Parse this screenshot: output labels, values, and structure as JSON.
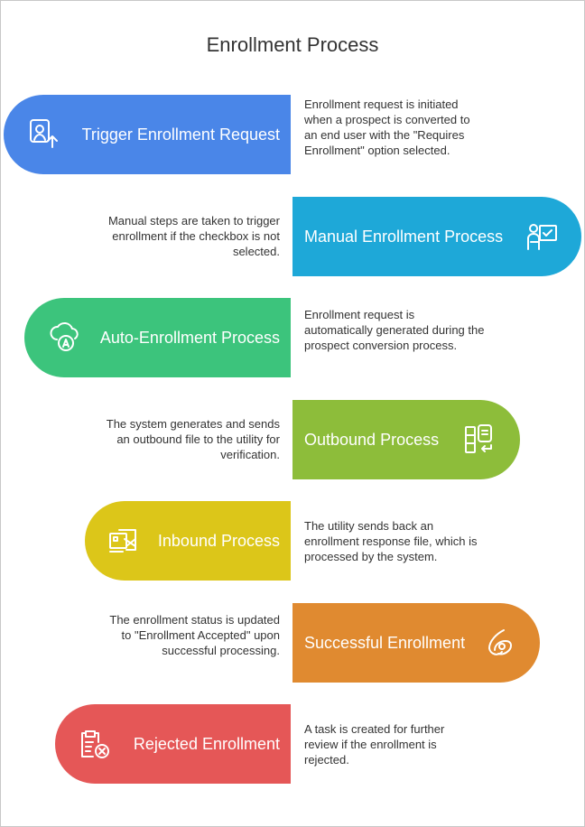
{
  "title": "Enrollment Process",
  "steps": [
    {
      "label": "Trigger Enrollment Request",
      "desc": "Enrollment request is initiated when a prospect is converted to an end user with the \"Requires Enrollment\" option selected.",
      "color": "#4a86e8",
      "icon": "user-upload-icon"
    },
    {
      "label": "Manual Enrollment Process",
      "desc": "Manual steps are taken to trigger enrollment if the checkbox is not selected.",
      "color": "#1ea8d8",
      "icon": "presenter-check-icon"
    },
    {
      "label": "Auto-Enrollment Process",
      "desc": "Enrollment request is automatically generated during the prospect conversion process.",
      "color": "#3cc47c",
      "icon": "cloud-auto-icon"
    },
    {
      "label": "Outbound Process",
      "desc": "The system generates and sends an outbound file to the utility for verification.",
      "color": "#8dbd3a",
      "icon": "document-send-icon"
    },
    {
      "label": "Inbound Process",
      "desc": "The utility sends back an enrollment response file, which is processed by the system.",
      "color": "#dcc619",
      "icon": "inbox-mail-icon"
    },
    {
      "label": "Successful Enrollment",
      "desc": "The enrollment status is updated to \"Enrollment Accepted\" upon successful processing.",
      "color": "#e08a30",
      "icon": "success-swirl-icon"
    },
    {
      "label": "Rejected Enrollment",
      "desc": "A task is created for further review if the enrollment is rejected.",
      "color": "#e55757",
      "icon": "clipboard-reject-icon"
    }
  ]
}
